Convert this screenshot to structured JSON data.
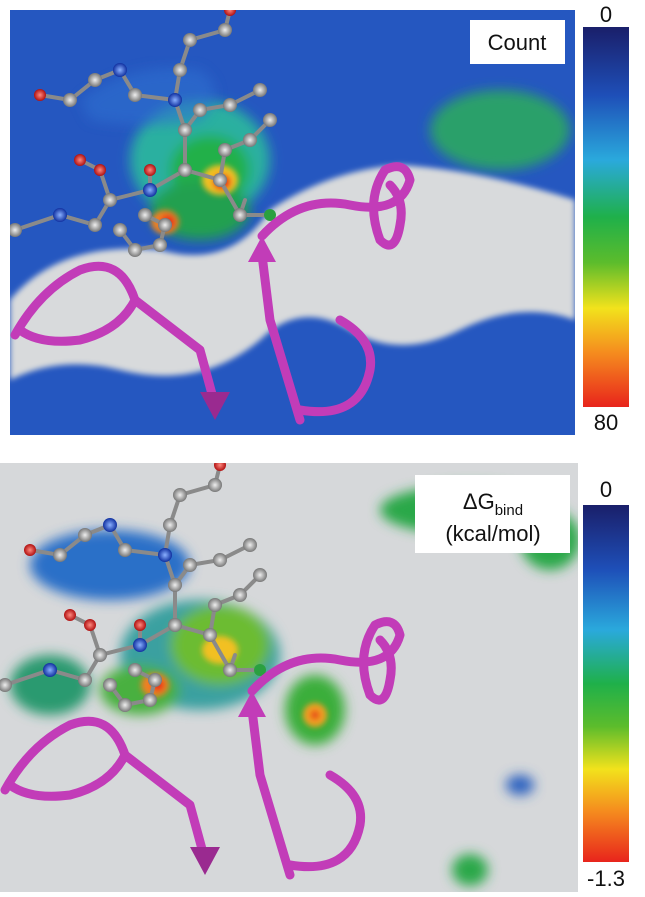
{
  "panels": [
    {
      "label": "Count",
      "colorbar": {
        "top_label": 0,
        "bottom_label": 80
      }
    },
    {
      "label": {
        "main": "ΔG",
        "sub": "bind",
        "unit": "(kcal/mol)"
      },
      "colorbar": {
        "top_label": 0,
        "bottom_label": -1.3
      }
    }
  ]
}
